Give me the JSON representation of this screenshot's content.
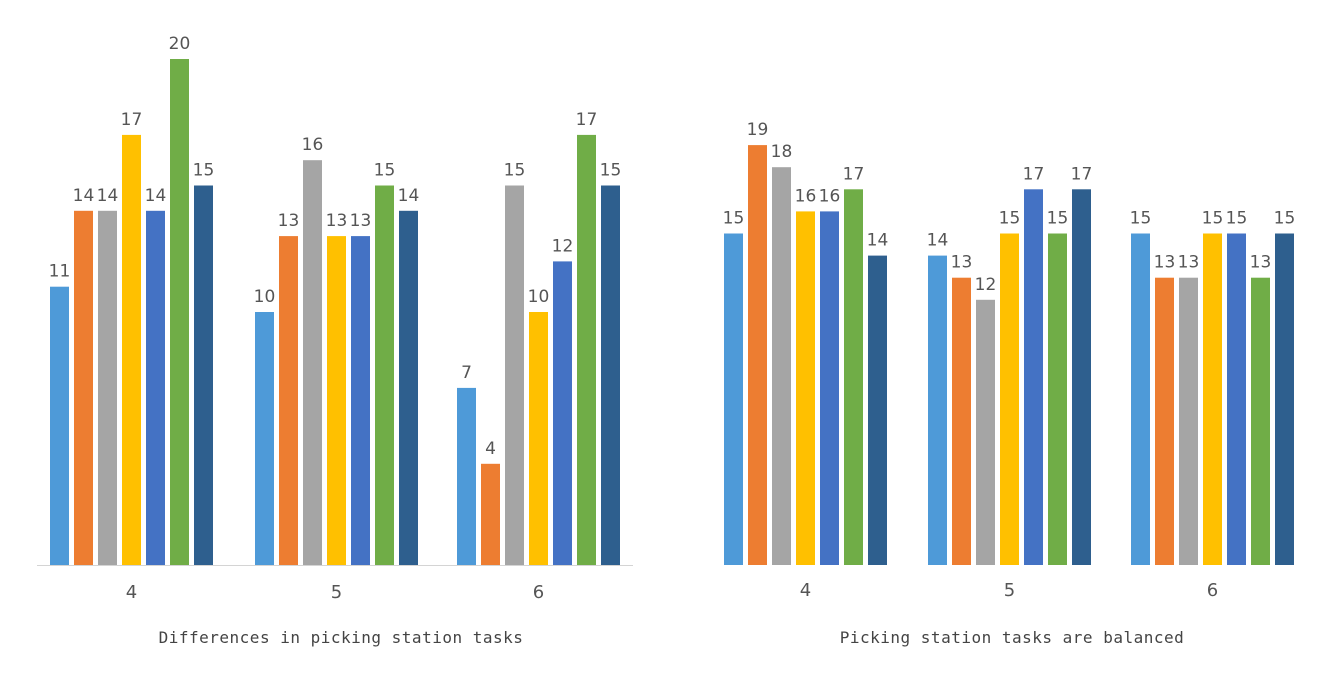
{
  "colors": [
    "#4E9AD8",
    "#ED7D31",
    "#A5A5A5",
    "#FFC000",
    "#4472C4",
    "#70AD47",
    "#2E5F8E"
  ],
  "chart_data": [
    {
      "type": "bar",
      "title": "Differences in picking station tasks",
      "categories": [
        "4",
        "5",
        "6"
      ],
      "ylim": [
        0,
        20
      ],
      "series_values": [
        [
          11,
          14,
          14,
          17,
          14,
          20,
          15
        ],
        [
          10,
          13,
          16,
          13,
          13,
          15,
          14
        ],
        [
          7,
          4,
          15,
          10,
          12,
          17,
          15
        ]
      ]
    },
    {
      "type": "bar",
      "title": "Picking station tasks are balanced",
      "categories": [
        "4",
        "5",
        "6"
      ],
      "ylim": [
        0,
        19
      ],
      "series_values": [
        [
          15,
          19,
          18,
          16,
          16,
          17,
          14
        ],
        [
          14,
          13,
          12,
          15,
          17,
          15,
          17
        ],
        [
          15,
          13,
          13,
          15,
          15,
          13,
          15
        ]
      ]
    }
  ]
}
